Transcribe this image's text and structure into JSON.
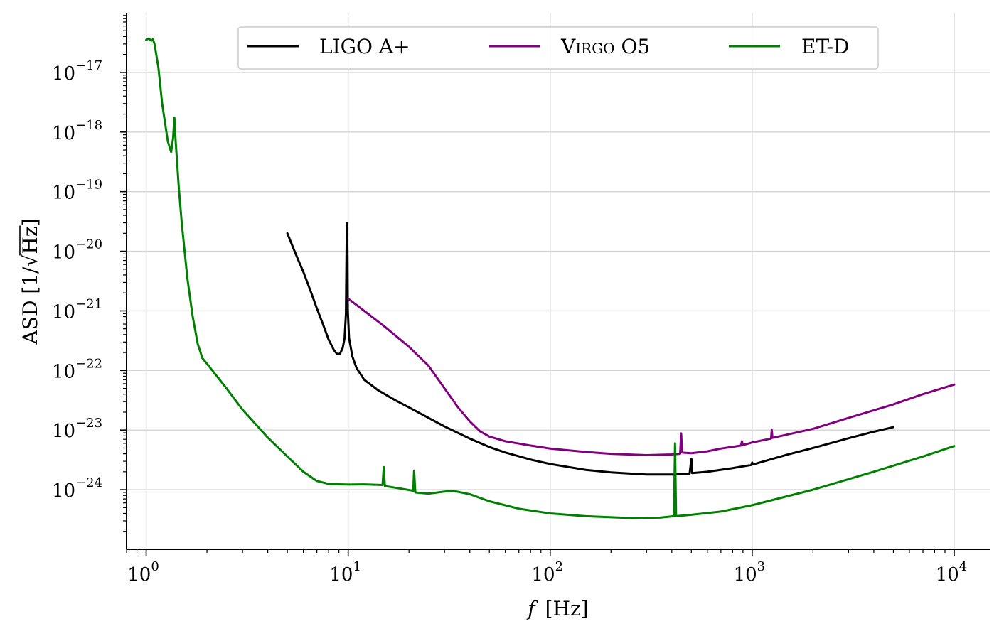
{
  "chart_data": {
    "type": "line",
    "xscale": "log",
    "yscale": "log",
    "xlim": [
      0.8,
      15000
    ],
    "ylim": [
      1e-25,
      1e-16
    ],
    "xlabel_var": "f",
    "xlabel_unit": "[Hz]",
    "ylabel_prefix": "ASD [1/",
    "ylabel_radicand": "Hz",
    "ylabel_suffix": "]",
    "grid": true,
    "legend_position": "top-center",
    "xticks": [
      {
        "value": 1,
        "base": "10",
        "exp": "0"
      },
      {
        "value": 10,
        "base": "10",
        "exp": "1"
      },
      {
        "value": 100,
        "base": "10",
        "exp": "2"
      },
      {
        "value": 1000,
        "base": "10",
        "exp": "3"
      },
      {
        "value": 10000,
        "base": "10",
        "exp": "4"
      }
    ],
    "yticks": [
      {
        "value": 1e-17,
        "base": "10",
        "exp": "−17"
      },
      {
        "value": 1e-18,
        "base": "10",
        "exp": "−18"
      },
      {
        "value": 1e-19,
        "base": "10",
        "exp": "−19"
      },
      {
        "value": 1e-20,
        "base": "10",
        "exp": "−20"
      },
      {
        "value": 1e-21,
        "base": "10",
        "exp": "−21"
      },
      {
        "value": 1e-22,
        "base": "10",
        "exp": "−22"
      },
      {
        "value": 1e-23,
        "base": "10",
        "exp": "−23"
      },
      {
        "value": 1e-24,
        "base": "10",
        "exp": "−24"
      }
    ],
    "series": [
      {
        "name": "LIGO A+",
        "legend_label": "LIGO A+",
        "color": "#000000",
        "points": [
          [
            5,
            2e-20
          ],
          [
            5.5,
            9e-21
          ],
          [
            6,
            4.5e-21
          ],
          [
            6.5,
            2.2e-21
          ],
          [
            7,
            1.1e-21
          ],
          [
            7.5,
            6e-22
          ],
          [
            8,
            3.3e-22
          ],
          [
            8.5,
            2.2e-22
          ],
          [
            8.8,
            1.9e-22
          ],
          [
            9.1,
            1.9e-22
          ],
          [
            9.4,
            2.4e-22
          ],
          [
            9.6,
            3.5e-22
          ],
          [
            9.75,
            9e-22
          ],
          [
            9.85,
            3e-20
          ],
          [
            9.92,
            1e-20
          ],
          [
            9.96,
            1e-21
          ],
          [
            10.1,
            3.5e-22
          ],
          [
            10.5,
            1.7e-22
          ],
          [
            11,
            1.1e-22
          ],
          [
            12,
            7e-23
          ],
          [
            14,
            4.7e-23
          ],
          [
            17,
            3.2e-23
          ],
          [
            20,
            2.4e-23
          ],
          [
            25,
            1.6e-23
          ],
          [
            30,
            1.15e-23
          ],
          [
            40,
            7.2e-24
          ],
          [
            50,
            5.2e-24
          ],
          [
            60,
            4.2e-24
          ],
          [
            80,
            3.2e-24
          ],
          [
            100,
            2.7e-24
          ],
          [
            150,
            2.15e-24
          ],
          [
            200,
            1.95e-24
          ],
          [
            300,
            1.8e-24
          ],
          [
            400,
            1.8e-24
          ],
          [
            490,
            1.85e-24
          ],
          [
            500,
            3.3e-24
          ],
          [
            505,
            1.9e-24
          ],
          [
            600,
            2e-24
          ],
          [
            800,
            2.3e-24
          ],
          [
            990,
            2.6e-24
          ],
          [
            1000,
            2.85e-24
          ],
          [
            1010,
            2.65e-24
          ],
          [
            1500,
            3.9e-24
          ],
          [
            2000,
            5e-24
          ],
          [
            3000,
            7.3e-24
          ],
          [
            4000,
            9.4e-24
          ],
          [
            5000,
            1.12e-23
          ]
        ]
      },
      {
        "name": "Virgo O5",
        "legend_label_main": "V",
        "legend_label_small": "IRGO",
        "legend_label_tail": " O5",
        "color": "#800080",
        "points": [
          [
            10,
            1.6e-21
          ],
          [
            12,
            1e-21
          ],
          [
            15,
            5.6e-22
          ],
          [
            20,
            2.5e-22
          ],
          [
            25,
            1.2e-22
          ],
          [
            30,
            5e-23
          ],
          [
            35,
            2.4e-23
          ],
          [
            40,
            1.4e-23
          ],
          [
            45,
            9.5e-24
          ],
          [
            50,
            7.8e-24
          ],
          [
            60,
            6.5e-24
          ],
          [
            80,
            5.5e-24
          ],
          [
            100,
            4.9e-24
          ],
          [
            150,
            4.3e-24
          ],
          [
            200,
            4e-24
          ],
          [
            300,
            3.8e-24
          ],
          [
            400,
            3.9e-24
          ],
          [
            440,
            4e-24
          ],
          [
            445,
            8.8e-24
          ],
          [
            450,
            4.2e-24
          ],
          [
            500,
            4.1e-24
          ],
          [
            600,
            4.4e-24
          ],
          [
            700,
            4.9e-24
          ],
          [
            880,
            5.5e-24
          ],
          [
            890,
            6.5e-24
          ],
          [
            900,
            5.6e-24
          ],
          [
            1000,
            6.2e-24
          ],
          [
            1240,
            7.2e-24
          ],
          [
            1250,
            1e-23
          ],
          [
            1260,
            7.4e-24
          ],
          [
            2000,
            1.05e-23
          ],
          [
            3000,
            1.6e-23
          ],
          [
            5000,
            2.7e-23
          ],
          [
            7000,
            4e-23
          ],
          [
            10000,
            5.8e-23
          ]
        ]
      },
      {
        "name": "ET-D",
        "legend_label": "ET-D",
        "color": "#008000",
        "points": [
          [
            1,
            3.5e-17
          ],
          [
            1.03,
            3.7e-17
          ],
          [
            1.06,
            3.4e-17
          ],
          [
            1.08,
            3.6e-17
          ],
          [
            1.1,
            3e-17
          ],
          [
            1.15,
            1.2e-17
          ],
          [
            1.2,
            3e-18
          ],
          [
            1.28,
            7e-19
          ],
          [
            1.33,
            4.6e-19
          ],
          [
            1.36,
            8e-19
          ],
          [
            1.38,
            1.75e-18
          ],
          [
            1.4,
            7e-19
          ],
          [
            1.45,
            1.2e-19
          ],
          [
            1.5,
            3e-20
          ],
          [
            1.6,
            3.5e-21
          ],
          [
            1.7,
            8e-22
          ],
          [
            1.8,
            2.8e-22
          ],
          [
            1.9,
            1.6e-22
          ],
          [
            2,
            1.3e-22
          ],
          [
            2.5,
            5e-23
          ],
          [
            3,
            2.2e-23
          ],
          [
            4,
            7.5e-24
          ],
          [
            5,
            3.6e-24
          ],
          [
            6,
            2e-24
          ],
          [
            7,
            1.4e-24
          ],
          [
            8,
            1.25e-24
          ],
          [
            10,
            1.22e-24
          ],
          [
            12,
            1.23e-24
          ],
          [
            14.8,
            1.2e-24
          ],
          [
            15,
            2.4e-24
          ],
          [
            15.2,
            1.15e-24
          ],
          [
            18,
            1.05e-24
          ],
          [
            21,
            9.6e-25
          ],
          [
            21.2,
            2.1e-24
          ],
          [
            21.5,
            9e-25
          ],
          [
            25,
            8.6e-25
          ],
          [
            30,
            9.3e-25
          ],
          [
            33,
            9.6e-25
          ],
          [
            40,
            8.4e-25
          ],
          [
            50,
            6.4e-25
          ],
          [
            70,
            4.8e-25
          ],
          [
            100,
            4e-25
          ],
          [
            150,
            3.6e-25
          ],
          [
            250,
            3.35e-25
          ],
          [
            350,
            3.4e-25
          ],
          [
            410,
            3.6e-25
          ],
          [
            415,
            6e-24
          ],
          [
            420,
            3.6e-25
          ],
          [
            500,
            3.8e-25
          ],
          [
            700,
            4.3e-25
          ],
          [
            1000,
            5.5e-25
          ],
          [
            2000,
            1e-24
          ],
          [
            4000,
            2e-24
          ],
          [
            7000,
            3.6e-24
          ],
          [
            10000,
            5.4e-24
          ]
        ]
      }
    ]
  }
}
